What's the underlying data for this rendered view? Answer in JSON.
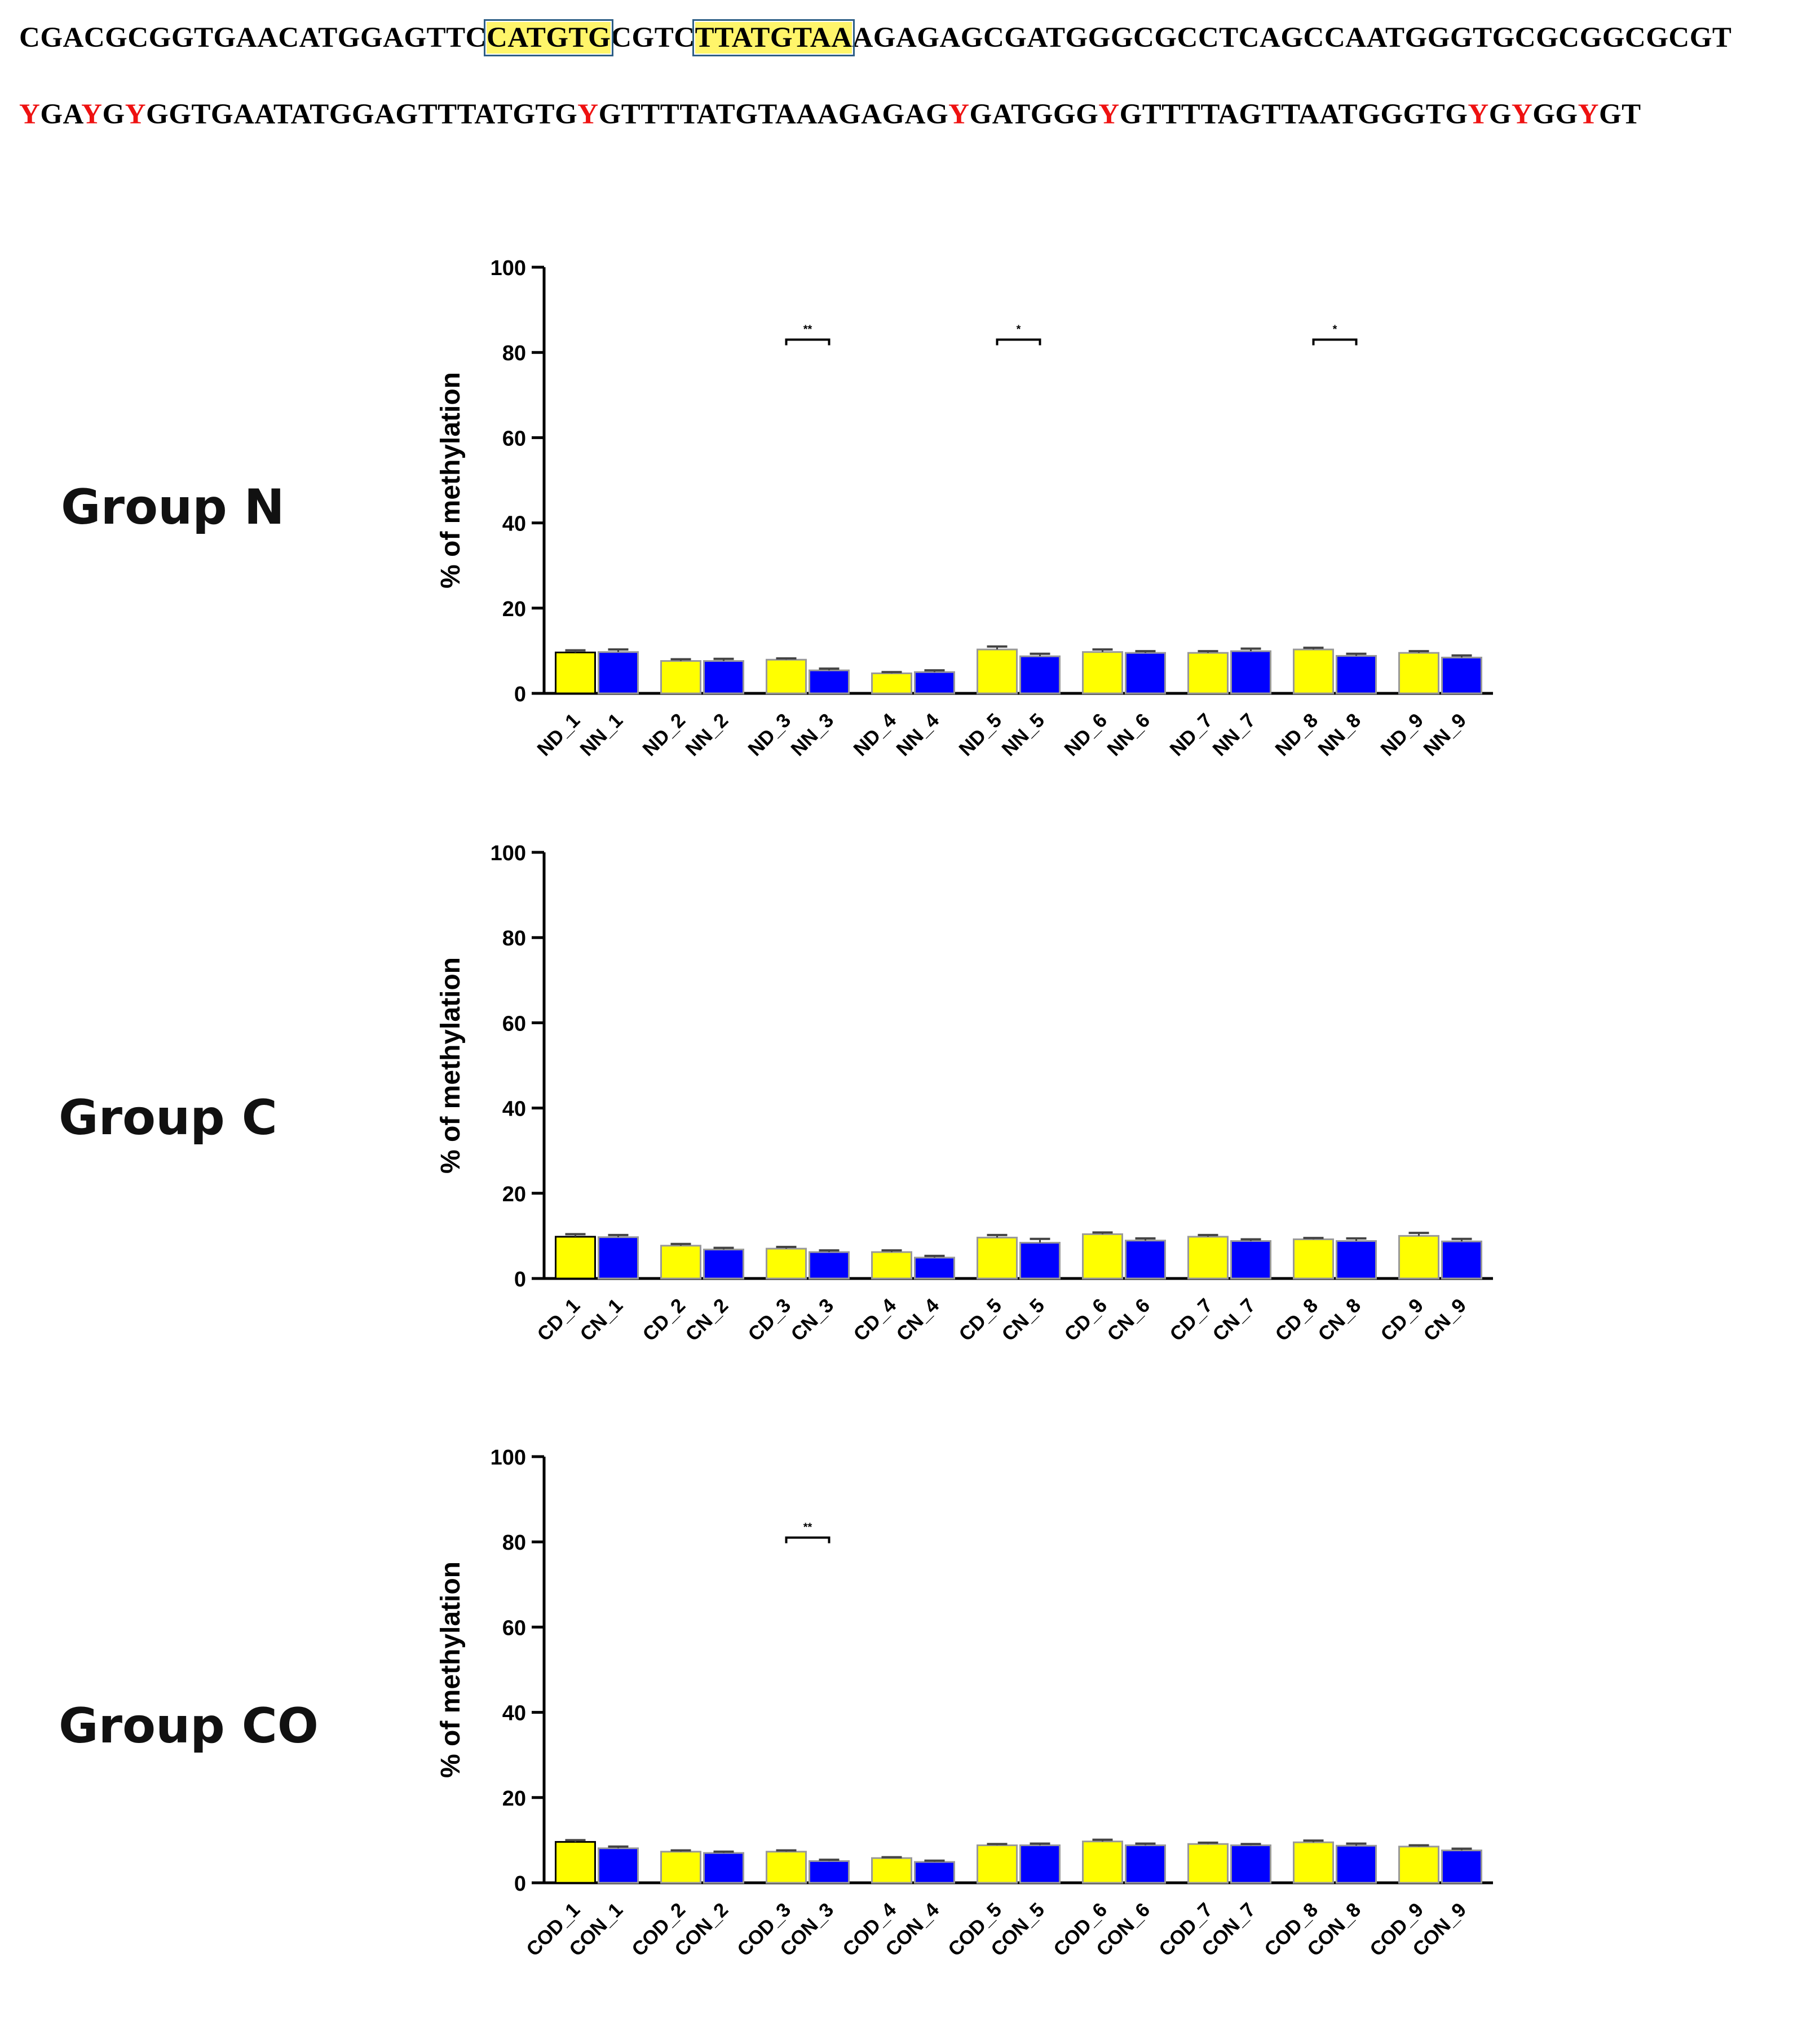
{
  "sequence": {
    "line1": [
      {
        "text": "CGACGCGGTGAACATGGAGTTC",
        "style": "plain"
      },
      {
        "text": "CATGTG",
        "style": "highlight"
      },
      {
        "text": "CGTC",
        "style": "plain"
      },
      {
        "text": "TTATGTAA",
        "style": "highlight"
      },
      {
        "text": "AGAGAGCGATGGGCGCCTCAGCCAATGGGTGCGCGGCGCGT",
        "style": "plain"
      }
    ],
    "line2": [
      {
        "text": "Y",
        "style": "red"
      },
      {
        "text": "GA",
        "style": "plain"
      },
      {
        "text": "Y",
        "style": "red"
      },
      {
        "text": "G",
        "style": "plain"
      },
      {
        "text": "Y",
        "style": "red"
      },
      {
        "text": "GGTGAATATGGAGTTTATGTG",
        "style": "plain"
      },
      {
        "text": "Y",
        "style": "red"
      },
      {
        "text": "GTTTTATGTAAAGAGAG",
        "style": "plain"
      },
      {
        "text": "Y",
        "style": "red"
      },
      {
        "text": "GATGGG",
        "style": "plain"
      },
      {
        "text": "Y",
        "style": "red"
      },
      {
        "text": "GTTTTAGTTAATGGGTG",
        "style": "plain"
      },
      {
        "text": "Y",
        "style": "red"
      },
      {
        "text": "G",
        "style": "plain"
      },
      {
        "text": "Y",
        "style": "red"
      },
      {
        "text": "GG",
        "style": "plain"
      },
      {
        "text": "Y",
        "style": "red"
      },
      {
        "text": "GT",
        "style": "plain"
      }
    ]
  },
  "colors": {
    "series_a": "#ffff00",
    "series_b": "#0000ff",
    "error": "#444444",
    "sequence_red": "#ee1111",
    "highlight": "#fff56a"
  },
  "chart_data": [
    {
      "type": "bar",
      "group_label": "Group N",
      "ylabel": "% of methylation",
      "ylim": [
        0,
        100
      ],
      "yticks": [
        0,
        20,
        40,
        60,
        80,
        100
      ],
      "series": [
        {
          "name": "ND",
          "color": "#ffff00",
          "values": [
            9.6,
            7.6,
            7.9,
            4.7,
            10.3,
            9.7,
            9.5,
            10.3,
            9.5
          ],
          "errors": [
            0.5,
            0.4,
            0.3,
            0.3,
            0.7,
            0.6,
            0.4,
            0.4,
            0.4
          ]
        },
        {
          "name": "NN",
          "color": "#0000ff",
          "values": [
            9.7,
            7.6,
            5.4,
            5.0,
            8.7,
            9.5,
            9.9,
            8.8,
            8.4
          ],
          "errors": [
            0.6,
            0.5,
            0.4,
            0.4,
            0.6,
            0.4,
            0.6,
            0.5,
            0.5
          ]
        }
      ],
      "categories_a": [
        "ND_1",
        "ND_2",
        "ND_3",
        "ND_4",
        "ND_5",
        "ND_6",
        "ND_7",
        "ND_8",
        "ND_9"
      ],
      "categories_b": [
        "NN_1",
        "NN_2",
        "NN_3",
        "NN_4",
        "NN_5",
        "NN_6",
        "NN_7",
        "NN_8",
        "NN_9"
      ],
      "significance": [
        {
          "pair": 3,
          "label": "**",
          "y": 83
        },
        {
          "pair": 5,
          "label": "*",
          "y": 83
        },
        {
          "pair": 8,
          "label": "*",
          "y": 83
        }
      ]
    },
    {
      "type": "bar",
      "group_label": "Group C",
      "ylabel": "% of methylation",
      "ylim": [
        0,
        100
      ],
      "yticks": [
        0,
        20,
        40,
        60,
        80,
        100
      ],
      "series": [
        {
          "name": "CD",
          "color": "#ffff00",
          "values": [
            9.8,
            7.7,
            7.0,
            6.2,
            9.6,
            10.4,
            9.8,
            9.2,
            10.0
          ],
          "errors": [
            0.6,
            0.4,
            0.4,
            0.4,
            0.6,
            0.4,
            0.4,
            0.3,
            0.7
          ]
        },
        {
          "name": "CN",
          "color": "#0000ff",
          "values": [
            9.7,
            6.8,
            6.2,
            4.9,
            8.4,
            8.9,
            8.8,
            8.8,
            8.7
          ],
          "errors": [
            0.5,
            0.4,
            0.4,
            0.4,
            0.9,
            0.5,
            0.4,
            0.6,
            0.6
          ]
        }
      ],
      "categories_a": [
        "CD_1",
        "CD_2",
        "CD_3",
        "CD_4",
        "CD_5",
        "CD_6",
        "CD_7",
        "CD_8",
        "CD_9"
      ],
      "categories_b": [
        "CN_1",
        "CN_2",
        "CN_3",
        "CN_4",
        "CN_5",
        "CN_6",
        "CN_7",
        "CN_8",
        "CN_9"
      ],
      "significance": []
    },
    {
      "type": "bar",
      "group_label": "Group CO",
      "ylabel": "% of methylation",
      "ylim": [
        0,
        100
      ],
      "yticks": [
        0,
        20,
        40,
        60,
        80,
        100
      ],
      "series": [
        {
          "name": "COD",
          "color": "#ffff00",
          "values": [
            9.6,
            7.3,
            7.3,
            5.8,
            8.8,
            9.7,
            9.1,
            9.5,
            8.5
          ],
          "errors": [
            0.4,
            0.3,
            0.3,
            0.2,
            0.3,
            0.4,
            0.3,
            0.4,
            0.3
          ]
        },
        {
          "name": "CON",
          "color": "#0000ff",
          "values": [
            8.1,
            7.0,
            5.1,
            4.9,
            8.8,
            8.8,
            8.8,
            8.7,
            7.6
          ],
          "errors": [
            0.4,
            0.3,
            0.3,
            0.3,
            0.4,
            0.4,
            0.3,
            0.5,
            0.4
          ]
        }
      ],
      "categories_a": [
        "COD_1",
        "COD_2",
        "COD_3",
        "COD_4",
        "COD_5",
        "COD_6",
        "COD_7",
        "COD_8",
        "COD_9"
      ],
      "categories_b": [
        "CON_1",
        "CON_2",
        "CON_3",
        "CON_4",
        "CON_5",
        "CON_6",
        "CON_7",
        "CON_8",
        "CON_9"
      ],
      "significance": [
        {
          "pair": 3,
          "label": "**",
          "y": 81
        }
      ]
    }
  ]
}
